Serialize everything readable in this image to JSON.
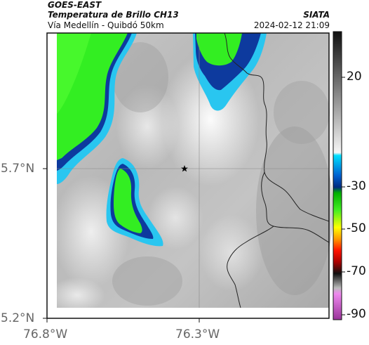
{
  "header": {
    "satellite": "GOES-EAST",
    "product": "Temperatura de Brillo CH13",
    "route": "Vía Medellín - Quibdó 50km",
    "org": "SIATA",
    "datetime": "2024-02-12 21:09"
  },
  "axes": {
    "lat_ticks": [
      "5.7°N",
      "5.2°N"
    ],
    "lon_ticks": [
      "76.8°W",
      "76.3°W"
    ]
  },
  "colorbar": {
    "ticks": [
      "20",
      "-30",
      "-50",
      "-70",
      "-90"
    ],
    "colors": {
      "warm_top": "#111111",
      "warm_bottom": "#f4f4f4",
      "cyan": "#00c8ff",
      "blue": "#003aa0",
      "green": "#22dd22",
      "yellow": "#ffff00",
      "red": "#ff2200",
      "dark": "#222222",
      "magenta": "#cc44cc"
    }
  },
  "map": {
    "marker": "star-icon",
    "cloud_colors": {
      "outer": "#29c6f0",
      "mid": "#0d3a9e",
      "core": "#33ee22"
    }
  }
}
